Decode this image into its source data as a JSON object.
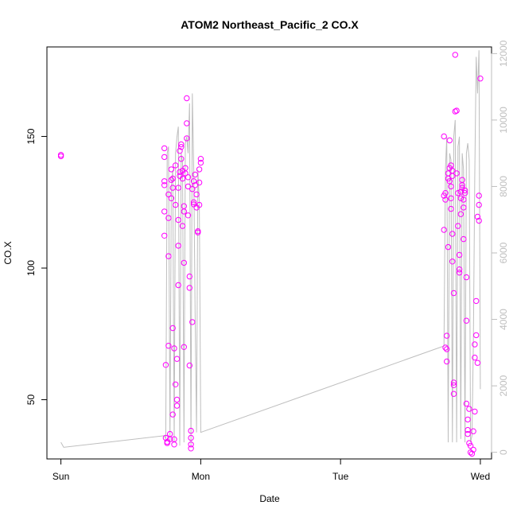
{
  "chart_data": {
    "type": "scatter",
    "title": "ATOM2 Northeast_Pacific_2 CO.X",
    "xlabel": "Date",
    "ylabel": "CO.X",
    "x_unit": "days since Sun 00:00",
    "xlim": [
      -0.1,
      3.08
    ],
    "ylim": [
      27.5,
      184
    ],
    "x_ticks": [
      {
        "value": 0,
        "label": "Sun"
      },
      {
        "value": 1,
        "label": "Mon"
      },
      {
        "value": 2,
        "label": "Tue"
      },
      {
        "value": 3,
        "label": "Wed"
      }
    ],
    "y_ticks": [
      {
        "value": 50,
        "label": "50"
      },
      {
        "value": 100,
        "label": "100"
      },
      {
        "value": 150,
        "label": "150"
      }
    ],
    "y2lim": [
      -200,
      12200
    ],
    "y2_ticks": [
      {
        "value": 0,
        "label": "0"
      },
      {
        "value": 2000,
        "label": "2000"
      },
      {
        "value": 4000,
        "label": "4000"
      },
      {
        "value": 6000,
        "label": "6000"
      },
      {
        "value": 8000,
        "label": "8000"
      },
      {
        "value": 10000,
        "label": "10000"
      },
      {
        "value": 12000,
        "label": "12000"
      }
    ],
    "series": [
      {
        "kind": "points",
        "axis": "left",
        "color": "#ff00ff",
        "points": [
          [
            0.0,
            142.5
          ],
          [
            0.0,
            143.0
          ],
          [
            0.74,
            145.5
          ],
          [
            0.74,
            142.2
          ],
          [
            0.74,
            133.0
          ],
          [
            0.74,
            131.5
          ],
          [
            0.74,
            121.5
          ],
          [
            0.74,
            112.3
          ],
          [
            0.75,
            63.2
          ],
          [
            0.75,
            35.5
          ],
          [
            0.76,
            34.0
          ],
          [
            0.76,
            33.5
          ],
          [
            0.77,
            128.0
          ],
          [
            0.77,
            119.0
          ],
          [
            0.77,
            104.5
          ],
          [
            0.77,
            70.5
          ],
          [
            0.78,
            37.0
          ],
          [
            0.78,
            35.0
          ],
          [
            0.79,
            133.5
          ],
          [
            0.79,
            137.5
          ],
          [
            0.79,
            126.5
          ],
          [
            0.8,
            134.0
          ],
          [
            0.8,
            130.5
          ],
          [
            0.8,
            77.2
          ],
          [
            0.8,
            44.4
          ],
          [
            0.81,
            69.5
          ],
          [
            0.81,
            35.0
          ],
          [
            0.81,
            33.0
          ],
          [
            0.82,
            139.0
          ],
          [
            0.82,
            124.0
          ],
          [
            0.82,
            55.8
          ],
          [
            0.83,
            50.0
          ],
          [
            0.83,
            47.7
          ],
          [
            0.83,
            65.5
          ],
          [
            0.84,
            93.5
          ],
          [
            0.84,
            108.5
          ],
          [
            0.84,
            118.3
          ],
          [
            0.84,
            130.5
          ],
          [
            0.85,
            136.5
          ],
          [
            0.85,
            135.0
          ],
          [
            0.85,
            144.5
          ],
          [
            0.86,
            147.0
          ],
          [
            0.86,
            146.0
          ],
          [
            0.86,
            141.5
          ],
          [
            0.87,
            137.0
          ],
          [
            0.87,
            134.0
          ],
          [
            0.87,
            116.0
          ],
          [
            0.88,
            121.5
          ],
          [
            0.88,
            123.5
          ],
          [
            0.88,
            102.0
          ],
          [
            0.88,
            70.0
          ],
          [
            0.89,
            138.0
          ],
          [
            0.89,
            136.0
          ],
          [
            0.9,
            149.3
          ],
          [
            0.9,
            155.0
          ],
          [
            0.9,
            164.5
          ],
          [
            0.91,
            134.5
          ],
          [
            0.91,
            131.0
          ],
          [
            0.91,
            120.0
          ],
          [
            0.92,
            92.5
          ],
          [
            0.92,
            96.8
          ],
          [
            0.92,
            63.0
          ],
          [
            0.93,
            38.2
          ],
          [
            0.93,
            35.5
          ],
          [
            0.93,
            33.0
          ],
          [
            0.93,
            31.5
          ],
          [
            0.94,
            130.0
          ],
          [
            0.94,
            79.5
          ],
          [
            0.95,
            125.0
          ],
          [
            0.95,
            124.2
          ],
          [
            0.95,
            133.0
          ],
          [
            0.96,
            135.5
          ],
          [
            0.96,
            131.5
          ],
          [
            0.97,
            128.0
          ],
          [
            0.97,
            123.0
          ],
          [
            0.98,
            114.0
          ],
          [
            0.98,
            113.5
          ],
          [
            0.99,
            137.5
          ],
          [
            0.99,
            132.5
          ],
          [
            0.99,
            124.0
          ],
          [
            1.0,
            141.5
          ],
          [
            1.0,
            140.0
          ],
          [
            2.74,
            150.0
          ],
          [
            2.74,
            127.5
          ],
          [
            2.74,
            114.5
          ],
          [
            2.75,
            128.5
          ],
          [
            2.75,
            126.0
          ],
          [
            2.75,
            69.8
          ],
          [
            2.76,
            69.2
          ],
          [
            2.76,
            74.3
          ],
          [
            2.76,
            64.5
          ],
          [
            2.77,
            108.0
          ],
          [
            2.77,
            136.0
          ],
          [
            2.77,
            134.0
          ],
          [
            2.78,
            133.0
          ],
          [
            2.78,
            138.0
          ],
          [
            2.78,
            148.5
          ],
          [
            2.79,
            131.0
          ],
          [
            2.79,
            126.5
          ],
          [
            2.79,
            122.5
          ],
          [
            2.8,
            113.0
          ],
          [
            2.8,
            102.5
          ],
          [
            2.81,
            90.5
          ],
          [
            2.81,
            56.5
          ],
          [
            2.81,
            55.5
          ],
          [
            2.81,
            52.2
          ],
          [
            2.82,
            181.0
          ],
          [
            2.82,
            159.5
          ],
          [
            2.83,
            159.8
          ],
          [
            2.83,
            136.0
          ],
          [
            2.84,
            128.5
          ],
          [
            2.84,
            116.0
          ],
          [
            2.85,
            105.0
          ],
          [
            2.85,
            98.3
          ],
          [
            2.85,
            99.5
          ],
          [
            2.86,
            120.5
          ],
          [
            2.86,
            126.5
          ],
          [
            2.87,
            133.5
          ],
          [
            2.87,
            131.5
          ],
          [
            2.88,
            126.0
          ],
          [
            2.88,
            123.0
          ],
          [
            2.88,
            111.0
          ],
          [
            2.89,
            129.5
          ],
          [
            2.89,
            128.5
          ],
          [
            2.9,
            96.5
          ],
          [
            2.9,
            80.0
          ],
          [
            2.9,
            48.5
          ],
          [
            2.91,
            42.5
          ],
          [
            2.91,
            38.5
          ],
          [
            2.91,
            37.0
          ],
          [
            2.92,
            46.5
          ],
          [
            2.92,
            33.5
          ],
          [
            2.93,
            32.5
          ],
          [
            2.93,
            30.0
          ],
          [
            2.94,
            29.5
          ],
          [
            2.95,
            31.0
          ],
          [
            2.95,
            38.0
          ],
          [
            2.96,
            45.5
          ],
          [
            2.96,
            66.0
          ],
          [
            2.96,
            71.0
          ],
          [
            2.97,
            87.5
          ],
          [
            2.97,
            74.5
          ],
          [
            2.98,
            64.0
          ],
          [
            2.98,
            119.5
          ],
          [
            2.99,
            118.0
          ],
          [
            2.99,
            127.5
          ],
          [
            2.99,
            124.0
          ],
          [
            3.0,
            172.0
          ],
          [
            2.8,
            135.0
          ],
          [
            2.8,
            137.0
          ],
          [
            2.79,
            139.0
          ],
          [
            2.86,
            129.0
          ],
          [
            2.87,
            130.5
          ]
        ]
      },
      {
        "kind": "line",
        "axis": "right",
        "color": "#bebebe",
        "points": [
          [
            0.0,
            300
          ],
          [
            0.02,
            150
          ],
          [
            0.74,
            500
          ],
          [
            0.75,
            400
          ],
          [
            0.76,
            9000
          ],
          [
            0.77,
            9200
          ],
          [
            0.78,
            300
          ],
          [
            0.79,
            8000
          ],
          [
            0.8,
            8500
          ],
          [
            0.81,
            300
          ],
          [
            0.82,
            9000
          ],
          [
            0.83,
            9500
          ],
          [
            0.84,
            9800
          ],
          [
            0.85,
            200
          ],
          [
            0.86,
            9000
          ],
          [
            0.87,
            8700
          ],
          [
            0.88,
            300
          ],
          [
            0.89,
            9300
          ],
          [
            0.9,
            9500
          ],
          [
            0.91,
            9000
          ],
          [
            0.92,
            10500
          ],
          [
            0.93,
            200
          ],
          [
            0.94,
            10800
          ],
          [
            0.95,
            8500
          ],
          [
            0.96,
            4200
          ],
          [
            0.97,
            600
          ],
          [
            0.98,
            8500
          ],
          [
            0.99,
            7500
          ],
          [
            1.0,
            600
          ],
          [
            2.74,
            3200
          ],
          [
            2.75,
            8500
          ],
          [
            2.76,
            9500
          ],
          [
            2.77,
            300
          ],
          [
            2.78,
            9000
          ],
          [
            2.79,
            8800
          ],
          [
            2.8,
            300
          ],
          [
            2.81,
            9500
          ],
          [
            2.82,
            10000
          ],
          [
            2.83,
            300
          ],
          [
            2.84,
            9200
          ],
          [
            2.85,
            9500
          ],
          [
            2.86,
            400
          ],
          [
            2.87,
            9000
          ],
          [
            2.88,
            8500
          ],
          [
            2.89,
            300
          ],
          [
            2.9,
            9000
          ],
          [
            2.91,
            9300
          ],
          [
            2.92,
            8800
          ],
          [
            2.93,
            300
          ],
          [
            2.94,
            500
          ],
          [
            2.95,
            3200
          ],
          [
            2.96,
            8300
          ],
          [
            2.97,
            11900
          ],
          [
            2.98,
            10800
          ],
          [
            2.99,
            12100
          ],
          [
            3.0,
            1900
          ]
        ]
      }
    ]
  }
}
